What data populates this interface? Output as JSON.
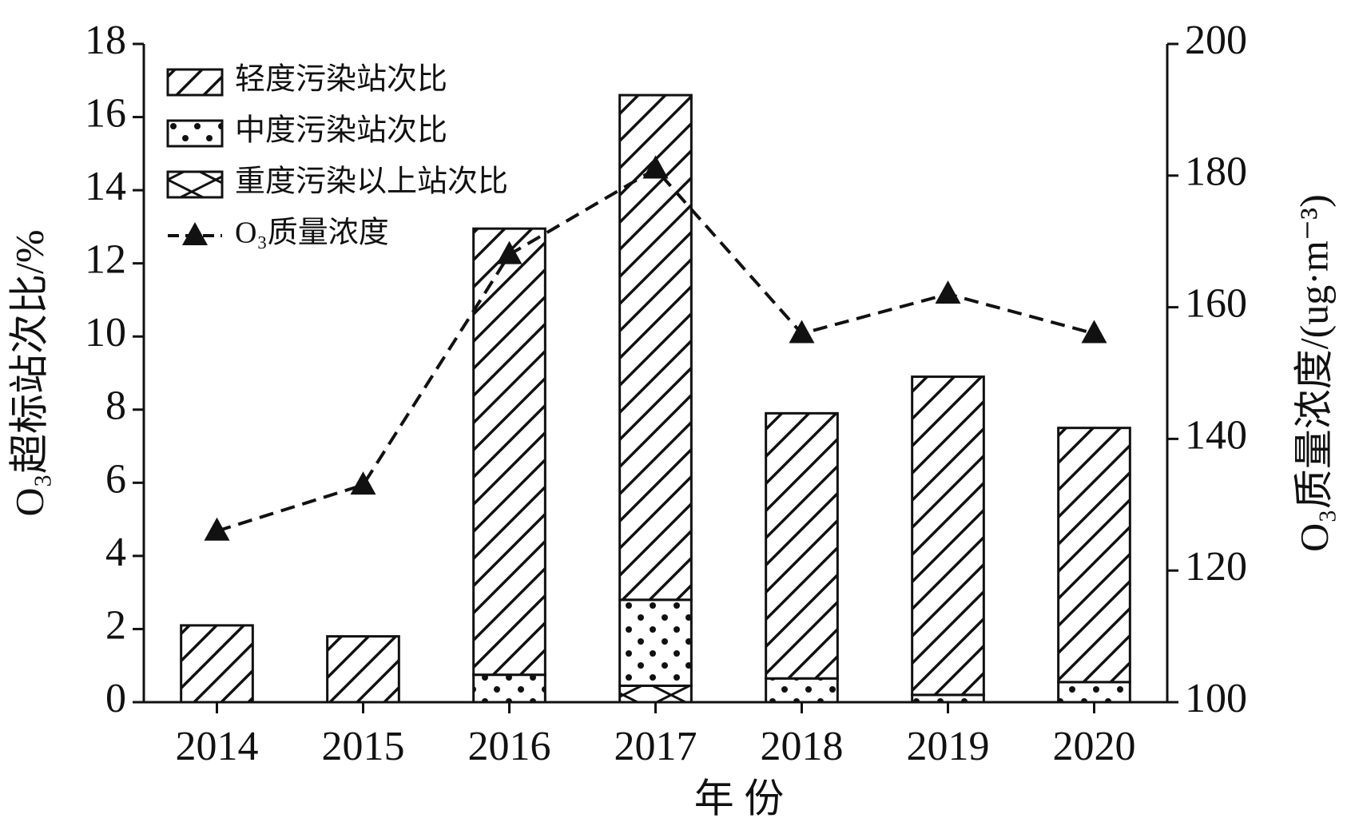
{
  "chart_data": {
    "type": "bar",
    "categories": [
      "2014",
      "2015",
      "2016",
      "2017",
      "2018",
      "2019",
      "2020"
    ],
    "x_label": "年 份",
    "y_label": "O₃超标站次比/%",
    "y2_label": "O₃质量浓度/(ug·m⁻³)",
    "ylim": [
      0,
      18
    ],
    "yticks": [
      0,
      2,
      4,
      6,
      8,
      10,
      12,
      14,
      16,
      18
    ],
    "y2lim": [
      100,
      200
    ],
    "y2ticks": [
      100,
      120,
      140,
      160,
      180,
      200
    ],
    "legend": "upper left",
    "series": [
      {
        "name": "轻度污染站次比",
        "kind": "bar",
        "pattern": "diagonal",
        "color": "#111111",
        "values": [
          2.1,
          1.8,
          12.2,
          13.8,
          7.25,
          8.7,
          6.95
        ]
      },
      {
        "name": "中度污染站次比",
        "kind": "bar",
        "pattern": "dots",
        "color": "#111111",
        "values": [
          0,
          0,
          0.75,
          2.35,
          0.65,
          0.2,
          0.55
        ]
      },
      {
        "name": "重度污染以上站次比",
        "kind": "bar",
        "pattern": "cross",
        "color": "#111111",
        "values": [
          0,
          0,
          0,
          0.45,
          0,
          0,
          0
        ]
      },
      {
        "name": "O₃质量浓度",
        "kind": "line",
        "axis": "y2",
        "marker": "triangle",
        "dashed": true,
        "color": "#111111",
        "values": [
          126,
          133,
          168,
          181,
          156,
          162,
          156
        ]
      }
    ]
  }
}
